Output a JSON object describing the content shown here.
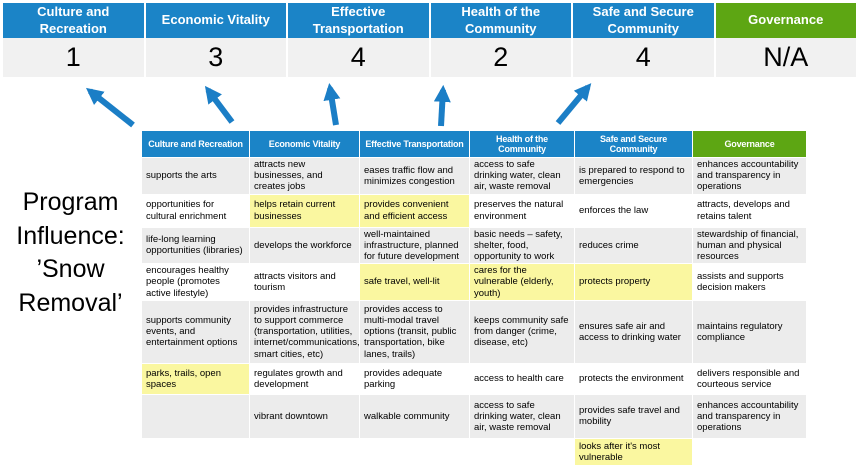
{
  "title": {
    "text": "Program Influence: ’Snow Removal’"
  },
  "colors": {
    "header_blue": "#1B84C7",
    "header_green": "#5DA613",
    "highlight_yellow": "#FAF7A0",
    "row_gray": "#ECECEC",
    "score_row_bg": "#F1F1F1",
    "arrow_blue": "#1B7EC6"
  },
  "scoreboard": {
    "categories": [
      {
        "label": "Culture and Recreation",
        "score": "1",
        "theme": "blue"
      },
      {
        "label": "Economic Vitality",
        "score": "3",
        "theme": "blue"
      },
      {
        "label": "Effective Transportation",
        "score": "4",
        "theme": "blue"
      },
      {
        "label": "Health of the Community",
        "score": "2",
        "theme": "blue"
      },
      {
        "label": "Safe and Secure Community",
        "score": "4",
        "theme": "blue"
      },
      {
        "label": "Governance",
        "score": "N/A",
        "theme": "green"
      }
    ]
  },
  "matrix": {
    "headers": [
      {
        "label": "Culture and Recreation",
        "theme": "blue"
      },
      {
        "label": "Economic Vitality",
        "theme": "blue"
      },
      {
        "label": "Effective Transportation",
        "theme": "blue"
      },
      {
        "label": "Health of the Community",
        "theme": "blue"
      },
      {
        "label": "Safe and Secure Community",
        "theme": "blue"
      },
      {
        "label": "Governance",
        "theme": "green"
      }
    ],
    "rows": [
      [
        {
          "text": "supports the arts",
          "highlight": false
        },
        {
          "text": "attracts new businesses, and creates jobs",
          "highlight": false
        },
        {
          "text": "eases traffic flow and minimizes congestion",
          "highlight": true
        },
        {
          "text": "access to safe drinking water, clean air, waste removal",
          "highlight": false
        },
        {
          "text": "is prepared to respond to emergencies",
          "highlight": true
        },
        {
          "text": "enhances accountability and transparency in operations",
          "highlight": false
        }
      ],
      [
        {
          "text": "opportunities for cultural enrichment",
          "highlight": false
        },
        {
          "text": "helps retain current businesses",
          "highlight": true
        },
        {
          "text": "provides convenient and efficient access",
          "highlight": true
        },
        {
          "text": "preserves the natural environment",
          "highlight": false
        },
        {
          "text": "enforces the law",
          "highlight": false
        },
        {
          "text": "attracts, develops and retains talent",
          "highlight": false
        }
      ],
      [
        {
          "text": "life-long learning opportunities (libraries)",
          "highlight": false
        },
        {
          "text": "develops the workforce",
          "highlight": false
        },
        {
          "text": "well-maintained infrastructure, planned for future development",
          "highlight": false
        },
        {
          "text": "basic needs – safety, shelter, food, opportunity to work",
          "highlight": true
        },
        {
          "text": "reduces crime",
          "highlight": false
        },
        {
          "text": "stewardship of financial, human and physical resources",
          "highlight": false
        }
      ],
      [
        {
          "text": "encourages healthy people (promotes active lifestyle)",
          "highlight": false
        },
        {
          "text": "attracts visitors and tourism",
          "highlight": false
        },
        {
          "text": "safe travel, well-lit",
          "highlight": true
        },
        {
          "text": "cares for the vulnerable (elderly, youth)",
          "highlight": true
        },
        {
          "text": "protects property",
          "highlight": true
        },
        {
          "text": "assists and supports decision makers",
          "highlight": false
        }
      ],
      [
        {
          "text": "supports community events, and entertainment options",
          "highlight": false
        },
        {
          "text": "provides infrastructure to support commerce (transportation, utilities, internet/communications, smart cities, etc)",
          "highlight": true
        },
        {
          "text": "provides access to multi-modal travel options (transit, public transportation, bike lanes, trails)",
          "highlight": true
        },
        {
          "text": "keeps community safe from danger (crime, disease, etc)",
          "highlight": true
        },
        {
          "text": "ensures safe air and access to drinking water",
          "highlight": false
        },
        {
          "text": "maintains regulatory compliance",
          "highlight": false
        }
      ],
      [
        {
          "text": "parks, trails, open spaces",
          "highlight": true
        },
        {
          "text": "regulates growth and development",
          "highlight": false
        },
        {
          "text": "provides adequate parking",
          "highlight": false
        },
        {
          "text": "access to health care",
          "highlight": false
        },
        {
          "text": "protects the environment",
          "highlight": false
        },
        {
          "text": "delivers responsible and courteous service",
          "highlight": false
        }
      ],
      [
        {
          "text": "",
          "highlight": false
        },
        {
          "text": "vibrant downtown",
          "highlight": false
        },
        {
          "text": "walkable community",
          "highlight": false
        },
        {
          "text": "access to safe drinking water, clean air, waste removal",
          "highlight": false
        },
        {
          "text": "provides safe travel and mobility",
          "highlight": true
        },
        {
          "text": "enhances accountability and transparency in operations",
          "highlight": false
        }
      ],
      [
        {
          "text": "",
          "highlight": false
        },
        {
          "text": "",
          "highlight": false
        },
        {
          "text": "",
          "highlight": false
        },
        {
          "text": "",
          "highlight": false
        },
        {
          "text": "looks after it's most vulnerable",
          "highlight": true
        },
        {
          "text": "",
          "highlight": false
        }
      ]
    ]
  }
}
